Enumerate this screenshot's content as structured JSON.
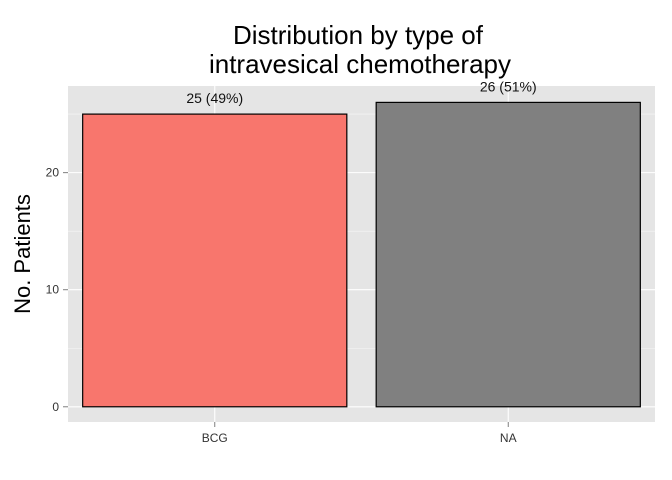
{
  "chart_data": {
    "type": "bar",
    "title_lines": [
      "Distribution by type of",
      "intravesical chemotherapy"
    ],
    "xlabel": "",
    "ylabel": "No. Patients",
    "categories": [
      "BCG",
      "NA"
    ],
    "values": [
      25,
      26
    ],
    "data_labels": [
      "25 (49%)",
      "26 (51%)"
    ],
    "colors": [
      "#F8766D",
      "#808080"
    ],
    "yticks": [
      0,
      10,
      20
    ],
    "ylim": [
      -1.3,
      27.4
    ],
    "grid": true,
    "panel_background": "#E5E5E5",
    "grid_color": "#FFFFFF",
    "bar_outline": "#000000"
  }
}
